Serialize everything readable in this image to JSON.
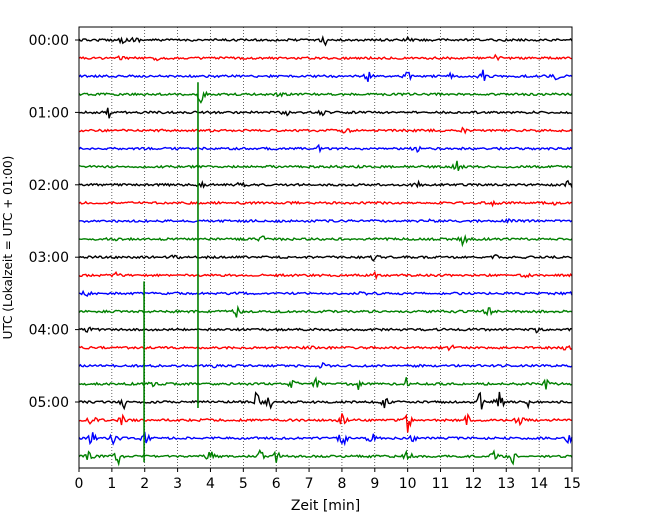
{
  "chart_data": {
    "type": "line",
    "title": "",
    "xlabel": "Zeit  [min]",
    "ylabel": "UTC (Lokalzeit = UTC + 01:00)",
    "xlim": [
      0,
      15
    ],
    "x_ticks": [
      "0",
      "1",
      "2",
      "3",
      "4",
      "5",
      "6",
      "7",
      "8",
      "9",
      "10",
      "11",
      "12",
      "13",
      "14",
      "15"
    ],
    "y_ticks": [
      {
        "label": "00:00",
        "row": 0
      },
      {
        "label": "01:00",
        "row": 4
      },
      {
        "label": "02:00",
        "row": 8
      },
      {
        "label": "03:00",
        "row": 12
      },
      {
        "label": "04:00",
        "row": 16
      },
      {
        "label": "05:00",
        "row": 20
      }
    ],
    "grid": "vertical-dotted",
    "colors": [
      "#000000",
      "#ff0000",
      "#0000ff",
      "#008000"
    ],
    "rows": 24,
    "row_interval_minutes": 15,
    "series": [
      {
        "start": "00:00",
        "color": "#000000",
        "events": [
          {
            "t": 1.3,
            "a": 0.4
          },
          {
            "t": 1.7,
            "a": 0.5
          },
          {
            "t": 7.5,
            "a": 0.6
          },
          {
            "t": 10.0,
            "a": 0.35
          }
        ]
      },
      {
        "start": "00:15",
        "color": "#ff0000",
        "events": [
          {
            "t": 1.3,
            "a": 0.4
          },
          {
            "t": 2.4,
            "a": 0.35
          },
          {
            "t": 12.7,
            "a": 0.4
          }
        ]
      },
      {
        "start": "00:30",
        "color": "#0000ff",
        "events": [
          {
            "t": 8.8,
            "a": 0.6
          },
          {
            "t": 10.0,
            "a": 0.6
          },
          {
            "t": 11.4,
            "a": 0.9
          },
          {
            "t": 12.3,
            "a": 0.7
          },
          {
            "t": 14.5,
            "a": 0.5
          }
        ]
      },
      {
        "start": "00:45",
        "color": "#008000",
        "events": [
          {
            "t": 3.7,
            "a": 1.4
          },
          {
            "t": 6.1,
            "a": 0.3
          }
        ]
      },
      {
        "start": "01:00",
        "color": "#000000",
        "events": [
          {
            "t": 0.9,
            "a": 0.7
          },
          {
            "t": 6.3,
            "a": 0.6
          },
          {
            "t": 7.4,
            "a": 0.3
          }
        ]
      },
      {
        "start": "01:15",
        "color": "#ff0000",
        "events": [
          {
            "t": 8.1,
            "a": 0.5
          },
          {
            "t": 11.7,
            "a": 0.4
          }
        ]
      },
      {
        "start": "01:30",
        "color": "#0000ff",
        "events": [
          {
            "t": 7.3,
            "a": 0.3
          },
          {
            "t": 10.3,
            "a": 0.3
          }
        ]
      },
      {
        "start": "01:45",
        "color": "#008000",
        "events": [
          {
            "t": 0.4,
            "a": 0.3
          },
          {
            "t": 11.5,
            "a": 0.6
          }
        ]
      },
      {
        "start": "02:00",
        "color": "#000000",
        "events": [
          {
            "t": 3.7,
            "a": 0.5
          },
          {
            "t": 4.9,
            "a": 0.4
          },
          {
            "t": 10.3,
            "a": 0.4
          },
          {
            "t": 14.9,
            "a": 0.8
          }
        ]
      },
      {
        "start": "02:15",
        "color": "#ff0000",
        "events": [
          {
            "t": 12.6,
            "a": 0.4
          },
          {
            "t": 14.5,
            "a": 0.4
          }
        ]
      },
      {
        "start": "02:30",
        "color": "#0000ff",
        "events": [
          {
            "t": 10.8,
            "a": 0.4
          },
          {
            "t": 13.1,
            "a": 0.4
          }
        ]
      },
      {
        "start": "02:45",
        "color": "#008000",
        "events": [
          {
            "t": 1.2,
            "a": 0.3
          },
          {
            "t": 5.6,
            "a": 0.4
          },
          {
            "t": 11.7,
            "a": 0.9
          }
        ]
      },
      {
        "start": "03:00",
        "color": "#000000",
        "events": [
          {
            "t": 2.9,
            "a": 0.3
          },
          {
            "t": 9.0,
            "a": 0.5
          },
          {
            "t": 12.7,
            "a": 0.3
          }
        ]
      },
      {
        "start": "03:15",
        "color": "#ff0000",
        "events": [
          {
            "t": 1.1,
            "a": 0.4
          },
          {
            "t": 9.0,
            "a": 0.4
          },
          {
            "t": 13.6,
            "a": 0.3
          }
        ]
      },
      {
        "start": "03:30",
        "color": "#0000ff",
        "events": [
          {
            "t": 0.2,
            "a": 0.4
          },
          {
            "t": 8.7,
            "a": 0.4
          },
          {
            "t": 14.9,
            "a": 0.3
          }
        ]
      },
      {
        "start": "03:45",
        "color": "#008000",
        "events": [
          {
            "t": 4.8,
            "a": 0.8
          },
          {
            "t": 12.4,
            "a": 1.2
          }
        ]
      },
      {
        "start": "04:00",
        "color": "#000000",
        "events": [
          {
            "t": 0.3,
            "a": 0.4
          },
          {
            "t": 13.9,
            "a": 0.4
          }
        ]
      },
      {
        "start": "04:15",
        "color": "#ff0000",
        "events": [
          {
            "t": 7.0,
            "a": 0.3
          },
          {
            "t": 11.3,
            "a": 0.4
          },
          {
            "t": 14.8,
            "a": 0.4
          }
        ]
      },
      {
        "start": "04:30",
        "color": "#0000ff",
        "events": [
          {
            "t": 4.1,
            "a": 0.3
          },
          {
            "t": 7.4,
            "a": 0.3
          },
          {
            "t": 10.4,
            "a": 0.4
          }
        ]
      },
      {
        "start": "04:45",
        "color": "#008000",
        "events": [
          {
            "t": 2.3,
            "a": 0.6
          },
          {
            "t": 6.5,
            "a": 1.0
          },
          {
            "t": 7.2,
            "a": 0.8
          },
          {
            "t": 8.5,
            "a": 0.7
          },
          {
            "t": 10.0,
            "a": 1.5
          },
          {
            "t": 14.2,
            "a": 0.6
          }
        ]
      },
      {
        "start": "05:00",
        "color": "#000000",
        "events": [
          {
            "t": 1.4,
            "a": 0.9
          },
          {
            "t": 5.4,
            "a": 1.3
          },
          {
            "t": 5.8,
            "a": 0.9
          },
          {
            "t": 9.3,
            "a": 0.9
          },
          {
            "t": 12.2,
            "a": 1.4
          },
          {
            "t": 12.8,
            "a": 1.3
          },
          {
            "t": 13.7,
            "a": 0.8
          }
        ]
      },
      {
        "start": "05:15",
        "color": "#ff0000",
        "events": [
          {
            "t": 0.4,
            "a": 0.7
          },
          {
            "t": 1.3,
            "a": 0.6
          },
          {
            "t": 8.0,
            "a": 0.9
          },
          {
            "t": 10.0,
            "a": 1.5
          },
          {
            "t": 11.8,
            "a": 1.0
          },
          {
            "t": 13.4,
            "a": 0.8
          }
        ]
      },
      {
        "start": "05:30",
        "color": "#0000ff",
        "events": [
          {
            "t": 0.4,
            "a": 1.3
          },
          {
            "t": 1.1,
            "a": 1.3
          },
          {
            "t": 2.0,
            "a": 1.0
          },
          {
            "t": 8.0,
            "a": 1.6
          },
          {
            "t": 8.9,
            "a": 0.9
          },
          {
            "t": 10.2,
            "a": 1.0
          },
          {
            "t": 14.9,
            "a": 0.6
          }
        ]
      },
      {
        "start": "05:45",
        "color": "#008000",
        "events": [
          {
            "t": 0.3,
            "a": 0.6
          },
          {
            "t": 1.2,
            "a": 0.9
          },
          {
            "t": 4.0,
            "a": 1.1
          },
          {
            "t": 5.5,
            "a": 1.0
          },
          {
            "t": 6.0,
            "a": 0.8
          },
          {
            "t": 10.0,
            "a": 0.8
          },
          {
            "t": 12.6,
            "a": 0.7
          },
          {
            "t": 13.2,
            "a": 0.9
          }
        ]
      }
    ],
    "long_spikes": [
      {
        "row": 3,
        "t": 3.62,
        "to_row": 20,
        "color": "#008000"
      },
      {
        "row": 14,
        "t": 1.98,
        "to_row": 23,
        "color": "#008000"
      }
    ]
  }
}
